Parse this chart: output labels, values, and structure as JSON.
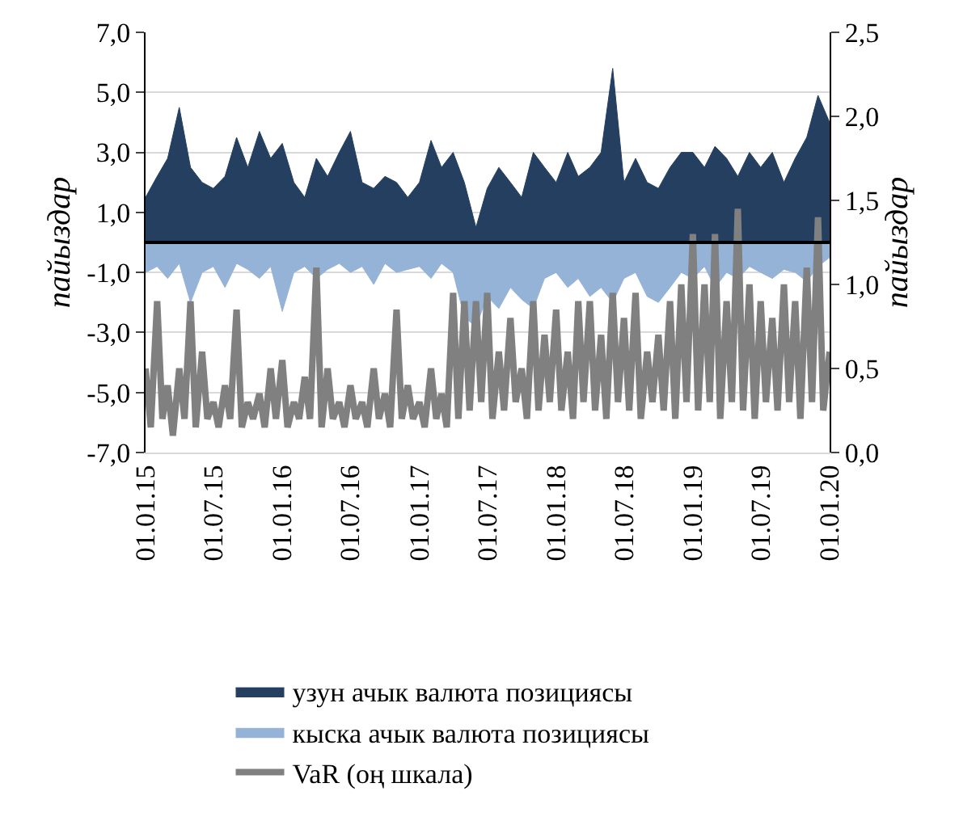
{
  "chart_data": {
    "type": "area",
    "x": [
      "2015-01-01",
      "2015-02-01",
      "2015-03-01",
      "2015-04-01",
      "2015-05-01",
      "2015-06-01",
      "2015-07-01",
      "2015-08-01",
      "2015-09-01",
      "2015-10-01",
      "2015-11-01",
      "2015-12-01",
      "2016-01-01",
      "2016-02-01",
      "2016-03-01",
      "2016-04-01",
      "2016-05-01",
      "2016-06-01",
      "2016-07-01",
      "2016-08-01",
      "2016-09-01",
      "2016-10-01",
      "2016-11-01",
      "2016-12-01",
      "2017-01-01",
      "2017-02-01",
      "2017-03-01",
      "2017-04-01",
      "2017-05-01",
      "2017-06-01",
      "2017-07-01",
      "2017-08-01",
      "2017-09-01",
      "2017-10-01",
      "2017-11-01",
      "2017-12-01",
      "2018-01-01",
      "2018-02-01",
      "2018-03-01",
      "2018-04-01",
      "2018-05-01",
      "2018-06-01",
      "2018-07-01",
      "2018-08-01",
      "2018-09-01",
      "2018-10-01",
      "2018-11-01",
      "2018-12-01",
      "2019-01-01",
      "2019-02-01",
      "2019-03-01",
      "2019-04-01",
      "2019-05-01",
      "2019-06-01",
      "2019-07-01",
      "2019-08-01",
      "2019-09-01",
      "2019-10-01",
      "2019-11-01",
      "2019-12-01",
      "2020-01-01"
    ],
    "series": [
      {
        "name": "узун ачык валюта позициясы",
        "color": "#243f60",
        "values": [
          1.5,
          2.2,
          2.8,
          4.5,
          2.5,
          2.0,
          1.8,
          2.2,
          3.5,
          2.5,
          3.7,
          2.8,
          3.3,
          2.0,
          1.5,
          2.8,
          2.2,
          3.0,
          3.7,
          2.0,
          1.8,
          2.2,
          2.0,
          1.5,
          2.0,
          3.4,
          2.5,
          3.0,
          2.0,
          0.5,
          1.8,
          2.5,
          2.0,
          1.5,
          3.0,
          2.5,
          2.0,
          3.0,
          2.2,
          2.5,
          3.0,
          5.8,
          2.0,
          2.8,
          2.0,
          1.8,
          2.5,
          3.0,
          3.0,
          2.5,
          3.2,
          2.8,
          2.2,
          3.0,
          2.5,
          3.0,
          2.0,
          2.8,
          3.5,
          4.9,
          4.0
        ]
      },
      {
        "name": "кыска ачык валюта позициясы",
        "color": "#95b3d7",
        "values": [
          -1.0,
          -0.8,
          -1.2,
          -0.7,
          -2.0,
          -1.0,
          -0.8,
          -1.5,
          -0.7,
          -0.9,
          -1.2,
          -0.8,
          -2.3,
          -1.0,
          -0.8,
          -1.2,
          -0.9,
          -0.7,
          -1.0,
          -0.8,
          -1.4,
          -0.7,
          -1.0,
          -0.9,
          -0.8,
          -1.2,
          -0.7,
          -1.0,
          -2.5,
          -2.8,
          -1.8,
          -2.2,
          -1.5,
          -1.9,
          -2.2,
          -1.2,
          -1.0,
          -1.5,
          -1.2,
          -1.8,
          -1.5,
          -2.0,
          -1.2,
          -1.0,
          -1.8,
          -2.0,
          -1.5,
          -1.0,
          -1.2,
          -0.8,
          -1.5,
          -1.0,
          -1.2,
          -0.8,
          -1.0,
          -1.2,
          -0.9,
          -1.0,
          -1.3,
          -0.8,
          -0.5
        ]
      },
      {
        "name": "VaR (оң шкала)",
        "type": "line",
        "axis": "y2",
        "color": "#808080",
        "x": [
          "2015-01-01",
          "2015-01-15",
          "2015-02-01",
          "2015-02-15",
          "2015-03-01",
          "2015-03-15",
          "2015-04-01",
          "2015-04-15",
          "2015-05-01",
          "2015-05-15",
          "2015-06-01",
          "2015-06-15",
          "2015-07-01",
          "2015-07-15",
          "2015-08-01",
          "2015-08-15",
          "2015-09-01",
          "2015-09-15",
          "2015-10-01",
          "2015-10-15",
          "2015-11-01",
          "2015-11-15",
          "2015-12-01",
          "2015-12-15",
          "2016-01-01",
          "2016-01-15",
          "2016-02-01",
          "2016-02-15",
          "2016-03-01",
          "2016-03-15",
          "2016-04-01",
          "2016-04-15",
          "2016-05-01",
          "2016-05-15",
          "2016-06-01",
          "2016-06-15",
          "2016-07-01",
          "2016-07-15",
          "2016-08-01",
          "2016-08-15",
          "2016-09-01",
          "2016-09-15",
          "2016-10-01",
          "2016-10-15",
          "2016-11-01",
          "2016-11-15",
          "2016-12-01",
          "2016-12-15",
          "2017-01-01",
          "2017-01-15",
          "2017-02-01",
          "2017-02-15",
          "2017-03-01",
          "2017-03-15",
          "2017-04-01",
          "2017-04-15",
          "2017-05-01",
          "2017-05-15",
          "2017-06-01",
          "2017-06-15",
          "2017-07-01",
          "2017-07-15",
          "2017-08-01",
          "2017-08-15",
          "2017-09-01",
          "2017-09-15",
          "2017-10-01",
          "2017-10-15",
          "2017-11-01",
          "2017-11-15",
          "2017-12-01",
          "2017-12-15",
          "2018-01-01",
          "2018-01-15",
          "2018-02-01",
          "2018-02-15",
          "2018-03-01",
          "2018-03-15",
          "2018-04-01",
          "2018-04-15",
          "2018-05-01",
          "2018-05-15",
          "2018-06-01",
          "2018-06-15",
          "2018-07-01",
          "2018-07-15",
          "2018-08-01",
          "2018-08-15",
          "2018-09-01",
          "2018-09-15",
          "2018-10-01",
          "2018-10-15",
          "2018-11-01",
          "2018-11-15",
          "2018-12-01",
          "2018-12-15",
          "2019-01-01",
          "2019-01-15",
          "2019-02-01",
          "2019-02-15",
          "2019-03-01",
          "2019-03-15",
          "2019-04-01",
          "2019-04-15",
          "2019-05-01",
          "2019-05-15",
          "2019-06-01",
          "2019-06-15",
          "2019-07-01",
          "2019-07-15",
          "2019-08-01",
          "2019-08-15",
          "2019-09-01",
          "2019-09-15",
          "2019-10-01",
          "2019-10-15",
          "2019-11-01",
          "2019-11-15",
          "2019-12-01",
          "2019-12-15",
          "2020-01-01"
        ],
        "values": [
          0.5,
          0.15,
          0.9,
          0.2,
          0.4,
          0.1,
          0.5,
          0.2,
          0.9,
          0.15,
          0.6,
          0.2,
          0.3,
          0.15,
          0.4,
          0.2,
          0.85,
          0.15,
          0.3,
          0.2,
          0.35,
          0.15,
          0.5,
          0.2,
          0.55,
          0.15,
          0.3,
          0.2,
          0.45,
          0.2,
          1.1,
          0.15,
          0.5,
          0.2,
          0.3,
          0.15,
          0.4,
          0.2,
          0.3,
          0.15,
          0.5,
          0.2,
          0.35,
          0.15,
          0.85,
          0.2,
          0.4,
          0.2,
          0.3,
          0.15,
          0.5,
          0.2,
          0.35,
          0.15,
          0.95,
          0.2,
          0.9,
          0.25,
          0.9,
          0.3,
          0.95,
          0.2,
          0.6,
          0.25,
          0.8,
          0.3,
          0.5,
          0.2,
          0.9,
          0.25,
          0.7,
          0.3,
          0.85,
          0.25,
          0.6,
          0.2,
          0.9,
          0.3,
          0.9,
          0.25,
          0.7,
          0.2,
          0.95,
          0.3,
          0.8,
          0.25,
          0.95,
          0.2,
          0.6,
          0.3,
          0.7,
          0.25,
          0.9,
          0.2,
          1.0,
          0.3,
          1.3,
          0.25,
          1.0,
          0.3,
          1.3,
          0.2,
          0.9,
          0.3,
          1.45,
          0.25,
          1.0,
          0.2,
          0.9,
          0.3,
          0.8,
          0.25,
          1.0,
          0.3,
          0.9,
          0.2,
          1.1,
          0.3,
          1.4,
          0.25,
          0.6
        ]
      }
    ],
    "xlim": [
      "2015-01-01",
      "2020-01-01"
    ],
    "xticks": [
      {
        "value": "2015-01-01",
        "label": "01.01.15"
      },
      {
        "value": "2015-07-01",
        "label": "01.07.15"
      },
      {
        "value": "2016-01-01",
        "label": "01.01.16"
      },
      {
        "value": "2016-07-01",
        "label": "01.07.16"
      },
      {
        "value": "2017-01-01",
        "label": "01.01.17"
      },
      {
        "value": "2017-07-01",
        "label": "01.07.17"
      },
      {
        "value": "2018-01-01",
        "label": "01.01.18"
      },
      {
        "value": "2018-07-01",
        "label": "01.07.18"
      },
      {
        "value": "2019-01-01",
        "label": "01.01.19"
      },
      {
        "value": "2019-07-01",
        "label": "01.07.19"
      },
      {
        "value": "2020-01-01",
        "label": "01.01.20"
      }
    ],
    "ylim": [
      -7,
      7
    ],
    "yticks": [
      {
        "value": -7,
        "label": "-7,0"
      },
      {
        "value": -5,
        "label": "-5,0"
      },
      {
        "value": -3,
        "label": "-3,0"
      },
      {
        "value": -1,
        "label": "-1,0"
      },
      {
        "value": 1,
        "label": "1,0"
      },
      {
        "value": 3,
        "label": "3,0"
      },
      {
        "value": 5,
        "label": "5,0"
      },
      {
        "value": 7,
        "label": "7,0"
      }
    ],
    "y2lim": [
      0,
      2.5
    ],
    "y2ticks": [
      {
        "value": 0,
        "label": "0,0"
      },
      {
        "value": 0.5,
        "label": "0,5"
      },
      {
        "value": 1,
        "label": "1,0"
      },
      {
        "value": 1.5,
        "label": "1,5"
      },
      {
        "value": 2,
        "label": "2,0"
      },
      {
        "value": 2.5,
        "label": "2,5"
      }
    ],
    "ylabel": "пайыздар",
    "y2label": "пайыздар",
    "ref_lines": [
      {
        "axis": "y",
        "value": 0,
        "color": "#000000"
      }
    ],
    "grid": "y",
    "legend": "bottom"
  }
}
